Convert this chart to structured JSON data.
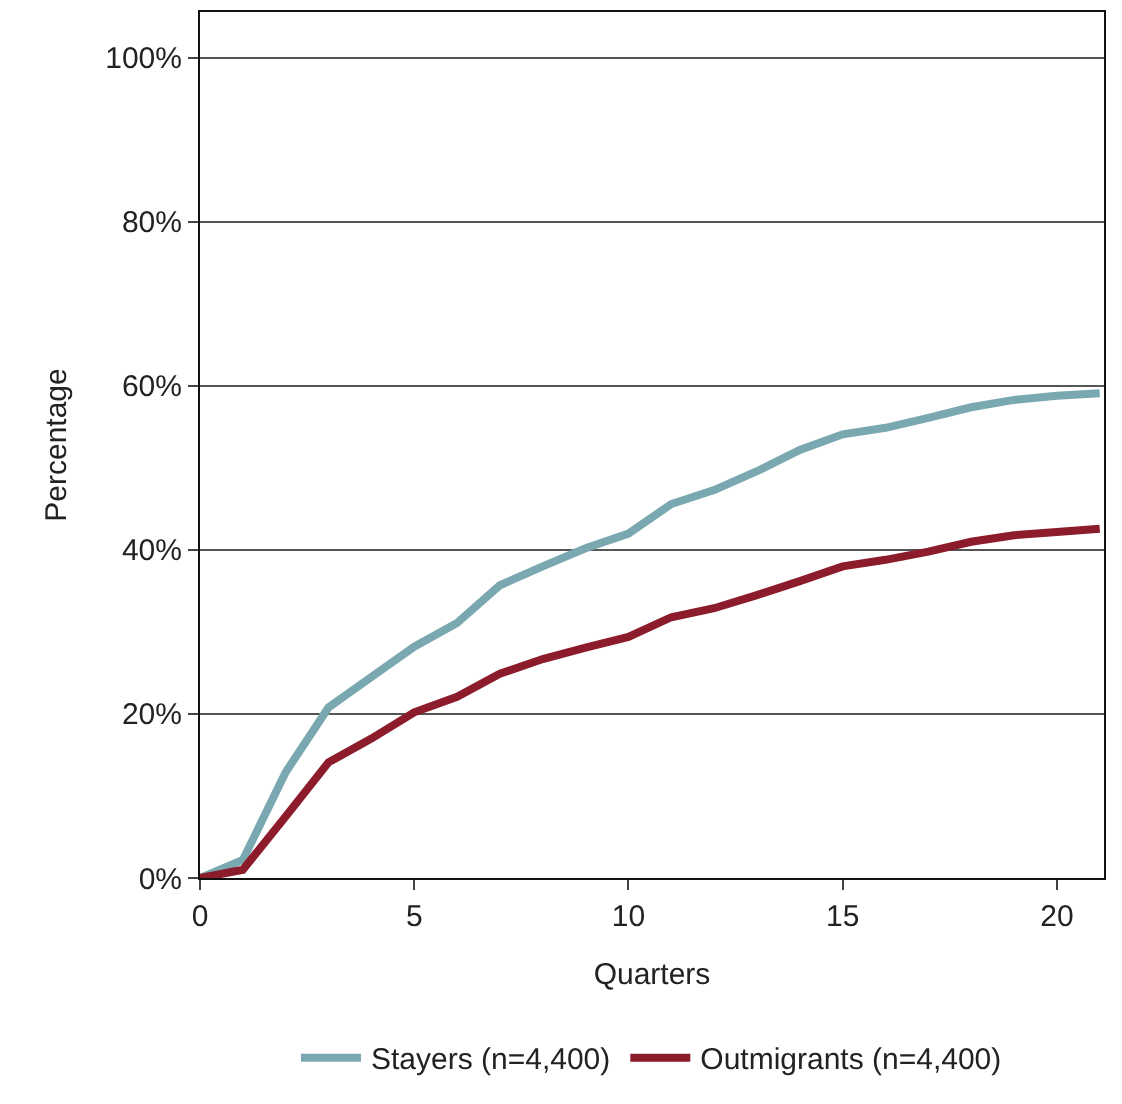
{
  "chart_data": {
    "type": "line",
    "xlabel": "Quarters",
    "ylabel": "Percentage",
    "x": [
      0,
      1,
      2,
      3,
      4,
      5,
      6,
      7,
      8,
      9,
      10,
      11,
      12,
      13,
      14,
      15,
      16,
      17,
      18,
      19,
      20,
      21
    ],
    "series": [
      {
        "name": "Stayers (n=4,400)",
        "color": "#7aa8b0",
        "values": [
          0,
          2.2,
          12.9,
          20.8,
          24.5,
          28.2,
          31.1,
          35.7,
          38,
          40.2,
          42,
          45.6,
          47.3,
          49.6,
          52.2,
          54.1,
          54.9,
          56.1,
          57.4,
          58.3,
          58.8,
          59.1
        ]
      },
      {
        "name": "Outmigrants (n=4,400)",
        "color": "#8c1c2c",
        "values": [
          0,
          1,
          7.5,
          14.1,
          17,
          20.2,
          22.1,
          24.9,
          26.7,
          28.1,
          29.4,
          31.8,
          32.9,
          34.5,
          36.2,
          38,
          38.8,
          39.8,
          41,
          41.8,
          42.2,
          42.6
        ]
      }
    ],
    "xlim": [
      0,
      21.1
    ],
    "xticks": [
      0,
      5,
      10,
      15,
      20
    ],
    "ylim": [
      0,
      105.6
    ],
    "yticks": [
      {
        "value": 0,
        "label": "0%"
      },
      {
        "value": 20,
        "label": "20%"
      },
      {
        "value": 40,
        "label": "40%"
      },
      {
        "value": 60,
        "label": "60%"
      },
      {
        "value": 80,
        "label": "80%"
      },
      {
        "value": 100,
        "label": "100%"
      }
    ],
    "grid": "y",
    "legend": "bottom",
    "marker": "none",
    "line_style": "solid"
  }
}
